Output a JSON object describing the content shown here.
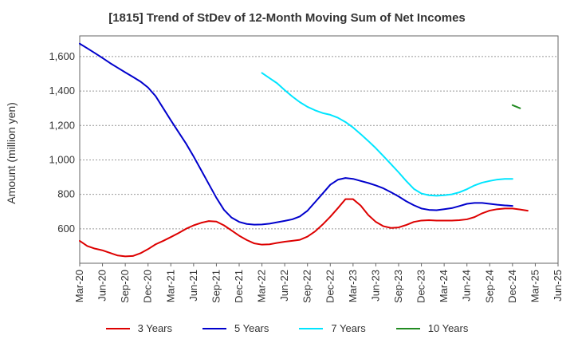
{
  "chart_data": {
    "type": "line",
    "title": "[1815]  Trend of StDev of 12-Month Moving Sum of Net Incomes",
    "xlabel": "",
    "ylabel": "Amount (million yen)",
    "ylim": [
      400,
      1720
    ],
    "yticks": [
      600,
      800,
      1000,
      1200,
      1400,
      1600
    ],
    "ytick_labels": [
      "600",
      "800",
      "1,000",
      "1,200",
      "1,400",
      "1,600"
    ],
    "xticks": [
      "Mar-20",
      "Jun-20",
      "Sep-20",
      "Dec-20",
      "Mar-21",
      "Jun-21",
      "Sep-21",
      "Dec-21",
      "Mar-22",
      "Jun-22",
      "Sep-22",
      "Dec-22",
      "Mar-23",
      "Jun-23",
      "Sep-23",
      "Dec-23",
      "Mar-24",
      "Jun-24",
      "Sep-24",
      "Dec-24",
      "Mar-25",
      "Jun-25"
    ],
    "grid": true,
    "legend_position": "bottom",
    "series": [
      {
        "name": "3 Years",
        "color": "#dd0000",
        "start": "Mar-20",
        "values": [
          530,
          500,
          485,
          475,
          460,
          445,
          440,
          442,
          458,
          482,
          510,
          530,
          552,
          575,
          600,
          620,
          635,
          645,
          642,
          620,
          590,
          560,
          535,
          515,
          508,
          510,
          518,
          525,
          530,
          536,
          555,
          585,
          625,
          670,
          720,
          772,
          772,
          735,
          680,
          640,
          615,
          605,
          608,
          622,
          640,
          648,
          650,
          648,
          648,
          648,
          650,
          655,
          668,
          690,
          706,
          714,
          718,
          718,
          712,
          705
        ]
      },
      {
        "name": "5 Years",
        "color": "#0000cc",
        "start": "Mar-20",
        "values": [
          1675,
          1648,
          1620,
          1592,
          1562,
          1535,
          1508,
          1482,
          1455,
          1420,
          1370,
          1300,
          1230,
          1162,
          1095,
          1020,
          940,
          860,
          780,
          710,
          665,
          640,
          628,
          624,
          625,
          630,
          638,
          646,
          655,
          672,
          705,
          755,
          805,
          856,
          885,
          895,
          890,
          878,
          866,
          852,
          835,
          812,
          788,
          760,
          737,
          718,
          710,
          708,
          714,
          720,
          732,
          745,
          750,
          750,
          745,
          740,
          736,
          733
        ]
      },
      {
        "name": "7 Years",
        "color": "#00e5ff",
        "start": "Mar-22",
        "values": [
          1505,
          1475,
          1445,
          1405,
          1368,
          1335,
          1308,
          1288,
          1272,
          1262,
          1245,
          1220,
          1188,
          1150,
          1110,
          1068,
          1022,
          975,
          928,
          878,
          832,
          805,
          795,
          792,
          795,
          800,
          812,
          830,
          852,
          868,
          878,
          886,
          890,
          890
        ]
      },
      {
        "name": "10 Years",
        "color": "#228b22",
        "start": "Dec-24",
        "values": [
          1318,
          1300
        ]
      }
    ]
  }
}
